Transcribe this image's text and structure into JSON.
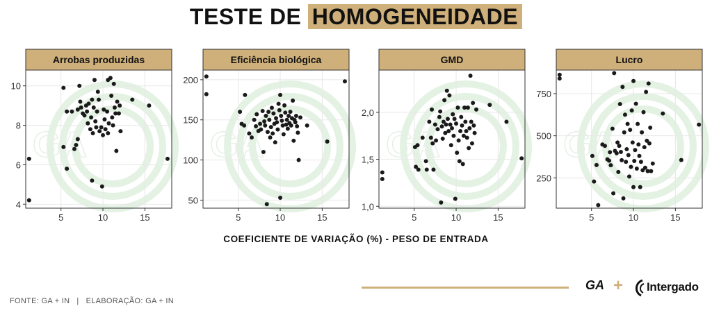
{
  "header": {
    "title_part1": "TESTE DE",
    "title_part2": "HOMOGENEIDADE"
  },
  "x_axis_title": "COEFICIENTE DE VARIAÇÃO (%) - PESO DE ENTRADA",
  "footer": {
    "source": "FONTE: GA + IN",
    "separator": "|",
    "elaboration": "ELABORAÇÃO: GA + IN"
  },
  "logos": {
    "ga": "GA",
    "plus": "+",
    "intergado": "Intergado"
  },
  "colors": {
    "accent": "#cfb07a",
    "point": "#1a1a1a",
    "panel_header": "#cfb07a",
    "grid": "#e8e8e8"
  },
  "chart_data": [
    {
      "type": "scatter",
      "title": "Arrobas produzidas",
      "xlim": [
        0.8,
        18.2
      ],
      "ylim": [
        3.8,
        10.8
      ],
      "x_ticks": [
        5,
        10,
        15
      ],
      "y_ticks": [
        4,
        6,
        8,
        10
      ],
      "y_tick_labels": [
        "4",
        "6",
        "8",
        "10"
      ],
      "points": [
        [
          1.2,
          6.3
        ],
        [
          1.2,
          4.2
        ],
        [
          5.3,
          9.9
        ],
        [
          5.3,
          6.9
        ],
        [
          5.7,
          5.8
        ],
        [
          5.7,
          8.7
        ],
        [
          6.3,
          8.7
        ],
        [
          6.6,
          6.8
        ],
        [
          6.8,
          7.0
        ],
        [
          7.0,
          7.3
        ],
        [
          7.0,
          8.8
        ],
        [
          7.2,
          10.0
        ],
        [
          7.3,
          9.2
        ],
        [
          7.4,
          8.9
        ],
        [
          7.6,
          8.6
        ],
        [
          7.8,
          8.5
        ],
        [
          8.0,
          9.0
        ],
        [
          8.1,
          8.7
        ],
        [
          8.2,
          8.1
        ],
        [
          8.3,
          9.1
        ],
        [
          8.5,
          7.8
        ],
        [
          8.6,
          8.4
        ],
        [
          8.7,
          9.3
        ],
        [
          8.7,
          5.2
        ],
        [
          8.8,
          7.6
        ],
        [
          8.9,
          8.9
        ],
        [
          9.0,
          10.3
        ],
        [
          9.1,
          8.2
        ],
        [
          9.2,
          7.9
        ],
        [
          9.3,
          8.7
        ],
        [
          9.4,
          9.7
        ],
        [
          9.5,
          9.3
        ],
        [
          9.6,
          7.7
        ],
        [
          9.8,
          7.9
        ],
        [
          9.9,
          4.9
        ],
        [
          10.0,
          7.5
        ],
        [
          10.1,
          8.8
        ],
        [
          10.2,
          8.3
        ],
        [
          10.3,
          7.8
        ],
        [
          10.5,
          8.7
        ],
        [
          10.6,
          10.3
        ],
        [
          10.6,
          7.6
        ],
        [
          10.7,
          8.1
        ],
        [
          10.9,
          10.4
        ],
        [
          11.0,
          9.5
        ],
        [
          11.1,
          8.4
        ],
        [
          11.2,
          8.0
        ],
        [
          11.3,
          10.1
        ],
        [
          11.4,
          8.9
        ],
        [
          11.5,
          8.6
        ],
        [
          11.6,
          6.7
        ],
        [
          11.7,
          9.2
        ],
        [
          11.9,
          8.6
        ],
        [
          12.0,
          9.0
        ],
        [
          12.1,
          7.7
        ],
        [
          13.5,
          9.3
        ],
        [
          15.5,
          9.0
        ],
        [
          17.7,
          6.3
        ]
      ]
    },
    {
      "type": "scatter",
      "title": "Eficiência biológica",
      "xlim": [
        0.8,
        18.2
      ],
      "ylim": [
        40,
        212
      ],
      "x_ticks": [
        5,
        10,
        15
      ],
      "y_ticks": [
        50,
        100,
        150,
        200
      ],
      "y_tick_labels": [
        "50",
        "100",
        "150",
        "200"
      ],
      "points": [
        [
          1.2,
          204
        ],
        [
          1.2,
          182
        ],
        [
          5.2,
          160
        ],
        [
          5.4,
          145
        ],
        [
          5.7,
          143
        ],
        [
          5.8,
          181
        ],
        [
          6.3,
          133
        ],
        [
          6.6,
          128
        ],
        [
          6.9,
          150
        ],
        [
          7.1,
          142
        ],
        [
          7.2,
          157
        ],
        [
          7.4,
          136
        ],
        [
          7.6,
          145
        ],
        [
          7.7,
          138
        ],
        [
          7.9,
          161
        ],
        [
          8.0,
          110
        ],
        [
          8.1,
          148
        ],
        [
          8.2,
          143
        ],
        [
          8.3,
          155
        ],
        [
          8.4,
          45
        ],
        [
          8.5,
          135
        ],
        [
          8.6,
          160
        ],
        [
          8.7,
          150
        ],
        [
          8.8,
          128
        ],
        [
          8.9,
          141
        ],
        [
          9.0,
          165
        ],
        [
          9.1,
          133
        ],
        [
          9.2,
          158
        ],
        [
          9.3,
          145
        ],
        [
          9.4,
          122
        ],
        [
          9.5,
          152
        ],
        [
          9.6,
          147
        ],
        [
          9.7,
          138
        ],
        [
          9.8,
          170
        ],
        [
          9.9,
          162
        ],
        [
          10.0,
          53
        ],
        [
          10.0,
          181
        ],
        [
          10.1,
          155
        ],
        [
          10.2,
          149
        ],
        [
          10.3,
          143
        ],
        [
          10.4,
          132
        ],
        [
          10.5,
          168
        ],
        [
          10.6,
          159
        ],
        [
          10.7,
          144
        ],
        [
          10.8,
          150
        ],
        [
          10.9,
          139
        ],
        [
          11.0,
          155
        ],
        [
          11.1,
          146
        ],
        [
          11.2,
          160
        ],
        [
          11.3,
          143
        ],
        [
          11.4,
          152
        ],
        [
          11.5,
          174
        ],
        [
          11.6,
          124
        ],
        [
          11.7,
          150
        ],
        [
          11.8,
          147
        ],
        [
          11.9,
          155
        ],
        [
          12.0,
          142
        ],
        [
          12.1,
          134
        ],
        [
          12.2,
          100
        ],
        [
          12.4,
          153
        ],
        [
          13.2,
          143
        ],
        [
          15.6,
          123
        ],
        [
          17.7,
          198
        ]
      ]
    },
    {
      "type": "scatter",
      "title": "GMD",
      "xlim": [
        0.8,
        18.2
      ],
      "ylim": [
        0.98,
        2.45
      ],
      "x_ticks": [
        5,
        10,
        15
      ],
      "y_ticks": [
        1.0,
        1.5,
        2.0
      ],
      "y_tick_labels": [
        "1,0",
        "1,5",
        "2,0"
      ],
      "points": [
        [
          1.2,
          1.36
        ],
        [
          1.2,
          1.29
        ],
        [
          5.1,
          1.63
        ],
        [
          5.2,
          1.42
        ],
        [
          5.4,
          1.65
        ],
        [
          5.5,
          1.39
        ],
        [
          6.0,
          1.73
        ],
        [
          6.4,
          1.48
        ],
        [
          6.5,
          1.39
        ],
        [
          6.8,
          1.9
        ],
        [
          7.0,
          1.73
        ],
        [
          7.1,
          2.03
        ],
        [
          7.2,
          1.67
        ],
        [
          7.3,
          1.39
        ],
        [
          7.5,
          1.87
        ],
        [
          7.6,
          1.7
        ],
        [
          7.8,
          1.82
        ],
        [
          8.0,
          1.95
        ],
        [
          8.1,
          2.01
        ],
        [
          8.2,
          1.04
        ],
        [
          8.3,
          1.85
        ],
        [
          8.4,
          1.72
        ],
        [
          8.5,
          1.9
        ],
        [
          8.6,
          2.13
        ],
        [
          8.7,
          1.78
        ],
        [
          8.8,
          1.87
        ],
        [
          8.9,
          2.23
        ],
        [
          9.0,
          1.93
        ],
        [
          9.1,
          1.8
        ],
        [
          9.2,
          2.18
        ],
        [
          9.3,
          1.87
        ],
        [
          9.4,
          1.65
        ],
        [
          9.5,
          1.83
        ],
        [
          9.6,
          1.98
        ],
        [
          9.7,
          1.75
        ],
        [
          9.8,
          1.93
        ],
        [
          9.9,
          1.08
        ],
        [
          10.0,
          1.88
        ],
        [
          10.1,
          1.57
        ],
        [
          10.2,
          2.05
        ],
        [
          10.3,
          1.7
        ],
        [
          10.4,
          1.48
        ],
        [
          10.5,
          1.8
        ],
        [
          10.6,
          1.95
        ],
        [
          10.7,
          1.86
        ],
        [
          10.8,
          1.45
        ],
        [
          10.9,
          1.75
        ],
        [
          11.0,
          2.05
        ],
        [
          11.1,
          1.9
        ],
        [
          11.2,
          1.8
        ],
        [
          11.3,
          1.73
        ],
        [
          11.4,
          2.05
        ],
        [
          11.5,
          1.62
        ],
        [
          11.6,
          1.83
        ],
        [
          11.7,
          2.39
        ],
        [
          11.8,
          1.9
        ],
        [
          11.9,
          1.67
        ],
        [
          12.0,
          2.1
        ],
        [
          12.1,
          1.86
        ],
        [
          12.2,
          1.78
        ],
        [
          12.4,
          2.03
        ],
        [
          14.0,
          2.08
        ],
        [
          16.0,
          1.9
        ],
        [
          17.8,
          1.51
        ]
      ]
    },
    {
      "type": "scatter",
      "title": "Lucro",
      "xlim": [
        0.8,
        18.2
      ],
      "ylim": [
        70,
        890
      ],
      "x_ticks": [
        5,
        10,
        15
      ],
      "y_ticks": [
        250,
        500,
        750
      ],
      "y_tick_labels": [
        "250",
        "500",
        "750"
      ],
      "points": [
        [
          1.2,
          862
        ],
        [
          1.2,
          840
        ],
        [
          5.1,
          380
        ],
        [
          5.3,
          228
        ],
        [
          5.6,
          326
        ],
        [
          5.8,
          88
        ],
        [
          6.3,
          448
        ],
        [
          6.6,
          440
        ],
        [
          6.9,
          360
        ],
        [
          7.1,
          352
        ],
        [
          7.2,
          402
        ],
        [
          7.3,
          325
        ],
        [
          7.5,
          542
        ],
        [
          7.6,
          158
        ],
        [
          7.7,
          872
        ],
        [
          7.8,
          410
        ],
        [
          8.0,
          396
        ],
        [
          8.1,
          460
        ],
        [
          8.2,
          285
        ],
        [
          8.3,
          440
        ],
        [
          8.4,
          688
        ],
        [
          8.5,
          404
        ],
        [
          8.6,
          355
        ],
        [
          8.7,
          790
        ],
        [
          8.8,
          128
        ],
        [
          8.9,
          520
        ],
        [
          9.0,
          625
        ],
        [
          9.1,
          345
        ],
        [
          9.2,
          420
        ],
        [
          9.3,
          570
        ],
        [
          9.4,
          385
        ],
        [
          9.5,
          258
        ],
        [
          9.6,
          535
        ],
        [
          9.7,
          315
        ],
        [
          9.8,
          650
        ],
        [
          9.9,
          460
        ],
        [
          10.0,
          195
        ],
        [
          10.0,
          825
        ],
        [
          10.1,
          350
        ],
        [
          10.2,
          415
        ],
        [
          10.3,
          690
        ],
        [
          10.4,
          305
        ],
        [
          10.5,
          570
        ],
        [
          10.6,
          448
        ],
        [
          10.7,
          380
        ],
        [
          10.8,
          195
        ],
        [
          10.9,
          345
        ],
        [
          11.0,
          520
        ],
        [
          11.1,
          295
        ],
        [
          11.2,
          640
        ],
        [
          11.3,
          432
        ],
        [
          11.4,
          310
        ],
        [
          11.5,
          760
        ],
        [
          11.6,
          470
        ],
        [
          11.7,
          290
        ],
        [
          11.8,
          810
        ],
        [
          11.9,
          455
        ],
        [
          12.0,
          548
        ],
        [
          12.1,
          290
        ],
        [
          12.3,
          335
        ],
        [
          13.5,
          632
        ],
        [
          15.7,
          356
        ],
        [
          17.8,
          566
        ]
      ]
    }
  ]
}
